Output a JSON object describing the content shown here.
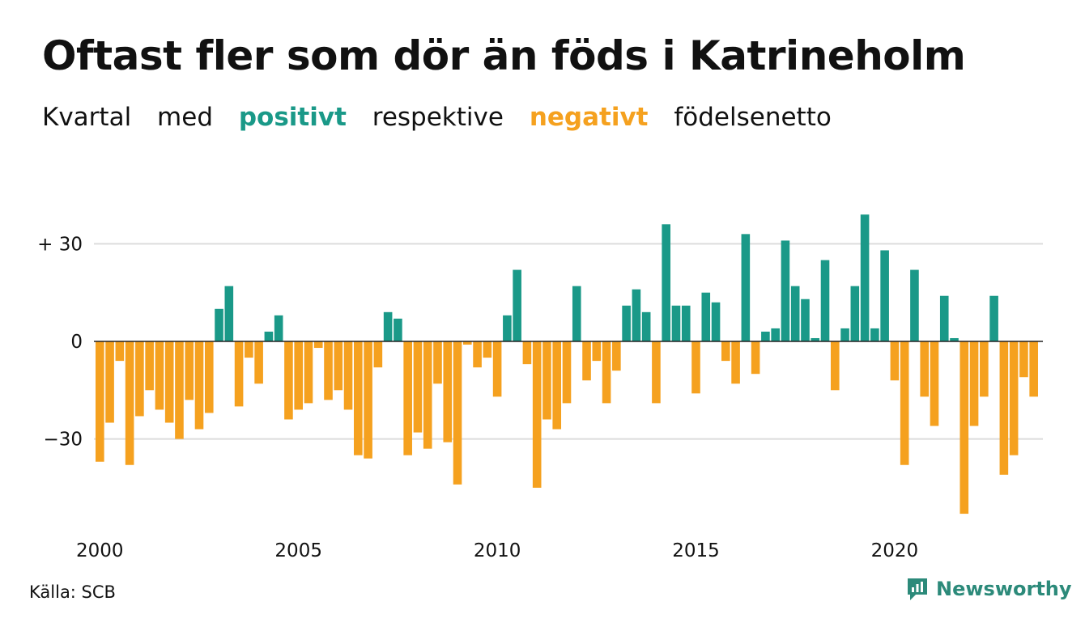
{
  "title": "Oftast fler som dör än föds i Katrineholm",
  "subtitle": {
    "part1": "Kvartal",
    "part2": "med",
    "positive": "positivt",
    "part3": "respektive",
    "negative": "negativt",
    "part4": "födelsenetto"
  },
  "source": "Källa: SCB",
  "brand": "Newsworthy",
  "colors": {
    "positive": "#1a9988",
    "negative": "#f5a11f",
    "grid": "#dcdcdc",
    "brand": "#2c8a7a"
  },
  "chart_data": {
    "type": "bar",
    "ylim": [
      -55,
      40
    ],
    "yticks": [
      {
        "value": 30,
        "label": "+ 30"
      },
      {
        "value": 0,
        "label": "0"
      },
      {
        "value": -30,
        "label": "−30"
      }
    ],
    "xticks": [
      "2000",
      "2005",
      "2010",
      "2015",
      "2020"
    ],
    "start_year": 2000,
    "values": [
      -37,
      -25,
      -6,
      -38,
      -23,
      -15,
      -21,
      -25,
      -30,
      -18,
      -27,
      -22,
      10,
      17,
      -20,
      -5,
      -13,
      3,
      8,
      -24,
      -21,
      -19,
      -2,
      -18,
      -15,
      -21,
      -35,
      -36,
      -8,
      9,
      7,
      -35,
      -28,
      -33,
      -13,
      -31,
      -44,
      -1,
      -8,
      -5,
      -17,
      8,
      22,
      -7,
      -45,
      -24,
      -27,
      -19,
      17,
      -12,
      -6,
      -19,
      -9,
      11,
      16,
      9,
      -19,
      36,
      11,
      11,
      -16,
      15,
      12,
      -6,
      -13,
      33,
      -10,
      3,
      4,
      31,
      17,
      13,
      1,
      25,
      -15,
      4,
      17,
      39,
      4,
      28,
      -12,
      -38,
      22,
      -17,
      -26,
      14,
      1,
      -53,
      -26,
      -17,
      14,
      -41,
      -35,
      -11,
      -17
    ]
  }
}
